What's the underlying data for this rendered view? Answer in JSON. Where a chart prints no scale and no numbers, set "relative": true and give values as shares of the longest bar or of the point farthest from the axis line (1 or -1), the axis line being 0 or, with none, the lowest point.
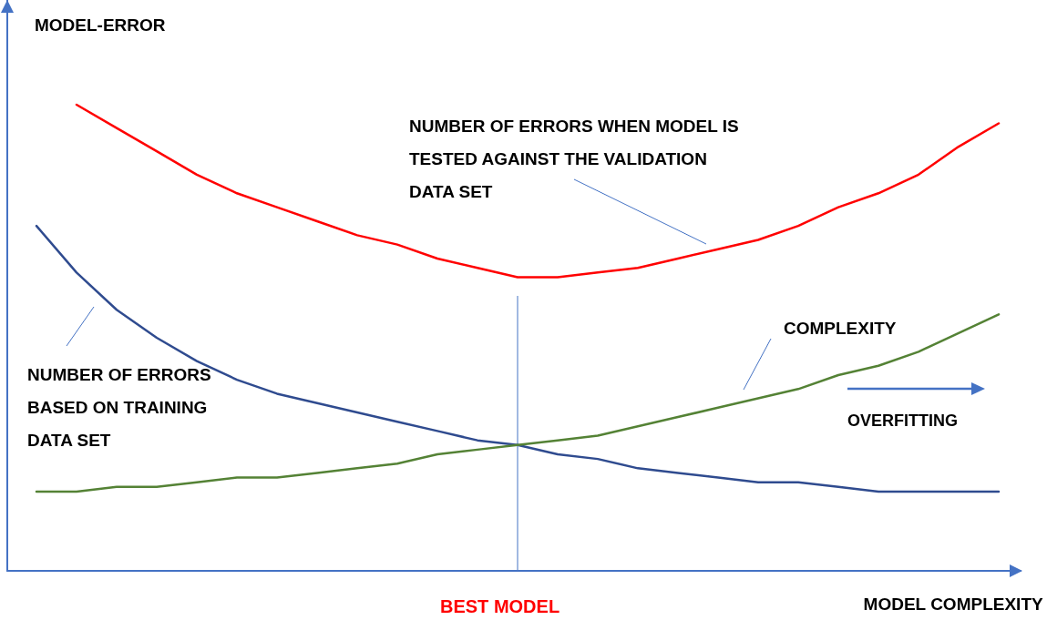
{
  "chart_data": {
    "type": "line",
    "relative": true,
    "title": "MODEL-ERROR",
    "xlabel": "MODEL COMPLEXITY",
    "categories": [
      null,
      null,
      null,
      null,
      null,
      null,
      null,
      null,
      null,
      null,
      null,
      null,
      null,
      null,
      null,
      null,
      null,
      null,
      null,
      null,
      null,
      null,
      null,
      null,
      null
    ],
    "series": [
      {
        "name": "NUMBER OF ERRORS WHEN MODEL IS TESTED AGAINST THE VALIDATION DATA SET",
        "color": "#ff0000",
        "values": [
          null,
          1.0,
          0.95,
          0.9,
          0.85,
          0.81,
          0.78,
          0.75,
          0.72,
          0.7,
          0.67,
          0.65,
          0.63,
          0.63,
          0.64,
          0.65,
          0.67,
          0.69,
          0.71,
          0.74,
          0.78,
          0.81,
          0.85,
          0.91,
          0.96
        ]
      },
      {
        "name": "NUMBER OF ERRORS BASED ON TRAINING DATA SET",
        "color": "#2f4b8f",
        "values": [
          0.74,
          0.64,
          0.56,
          0.5,
          0.45,
          0.41,
          0.38,
          0.36,
          0.34,
          0.32,
          0.3,
          0.28,
          0.27,
          0.25,
          0.24,
          0.22,
          0.21,
          0.2,
          0.19,
          0.19,
          0.18,
          0.17,
          0.17,
          0.17,
          0.17
        ]
      },
      {
        "name": "COMPLEXITY",
        "color": "#548235",
        "values": [
          0.17,
          0.17,
          0.18,
          0.18,
          0.19,
          0.2,
          0.2,
          0.21,
          0.22,
          0.23,
          0.25,
          0.26,
          0.27,
          0.28,
          0.29,
          0.31,
          0.33,
          0.35,
          0.37,
          0.39,
          0.42,
          0.44,
          0.47,
          0.51,
          0.55
        ]
      }
    ],
    "annotations": [
      "OVERFITTING",
      "BEST MODEL"
    ],
    "legend": false,
    "grid": false,
    "tick_labels": false,
    "marker": "none",
    "line_style": "solid"
  }
}
